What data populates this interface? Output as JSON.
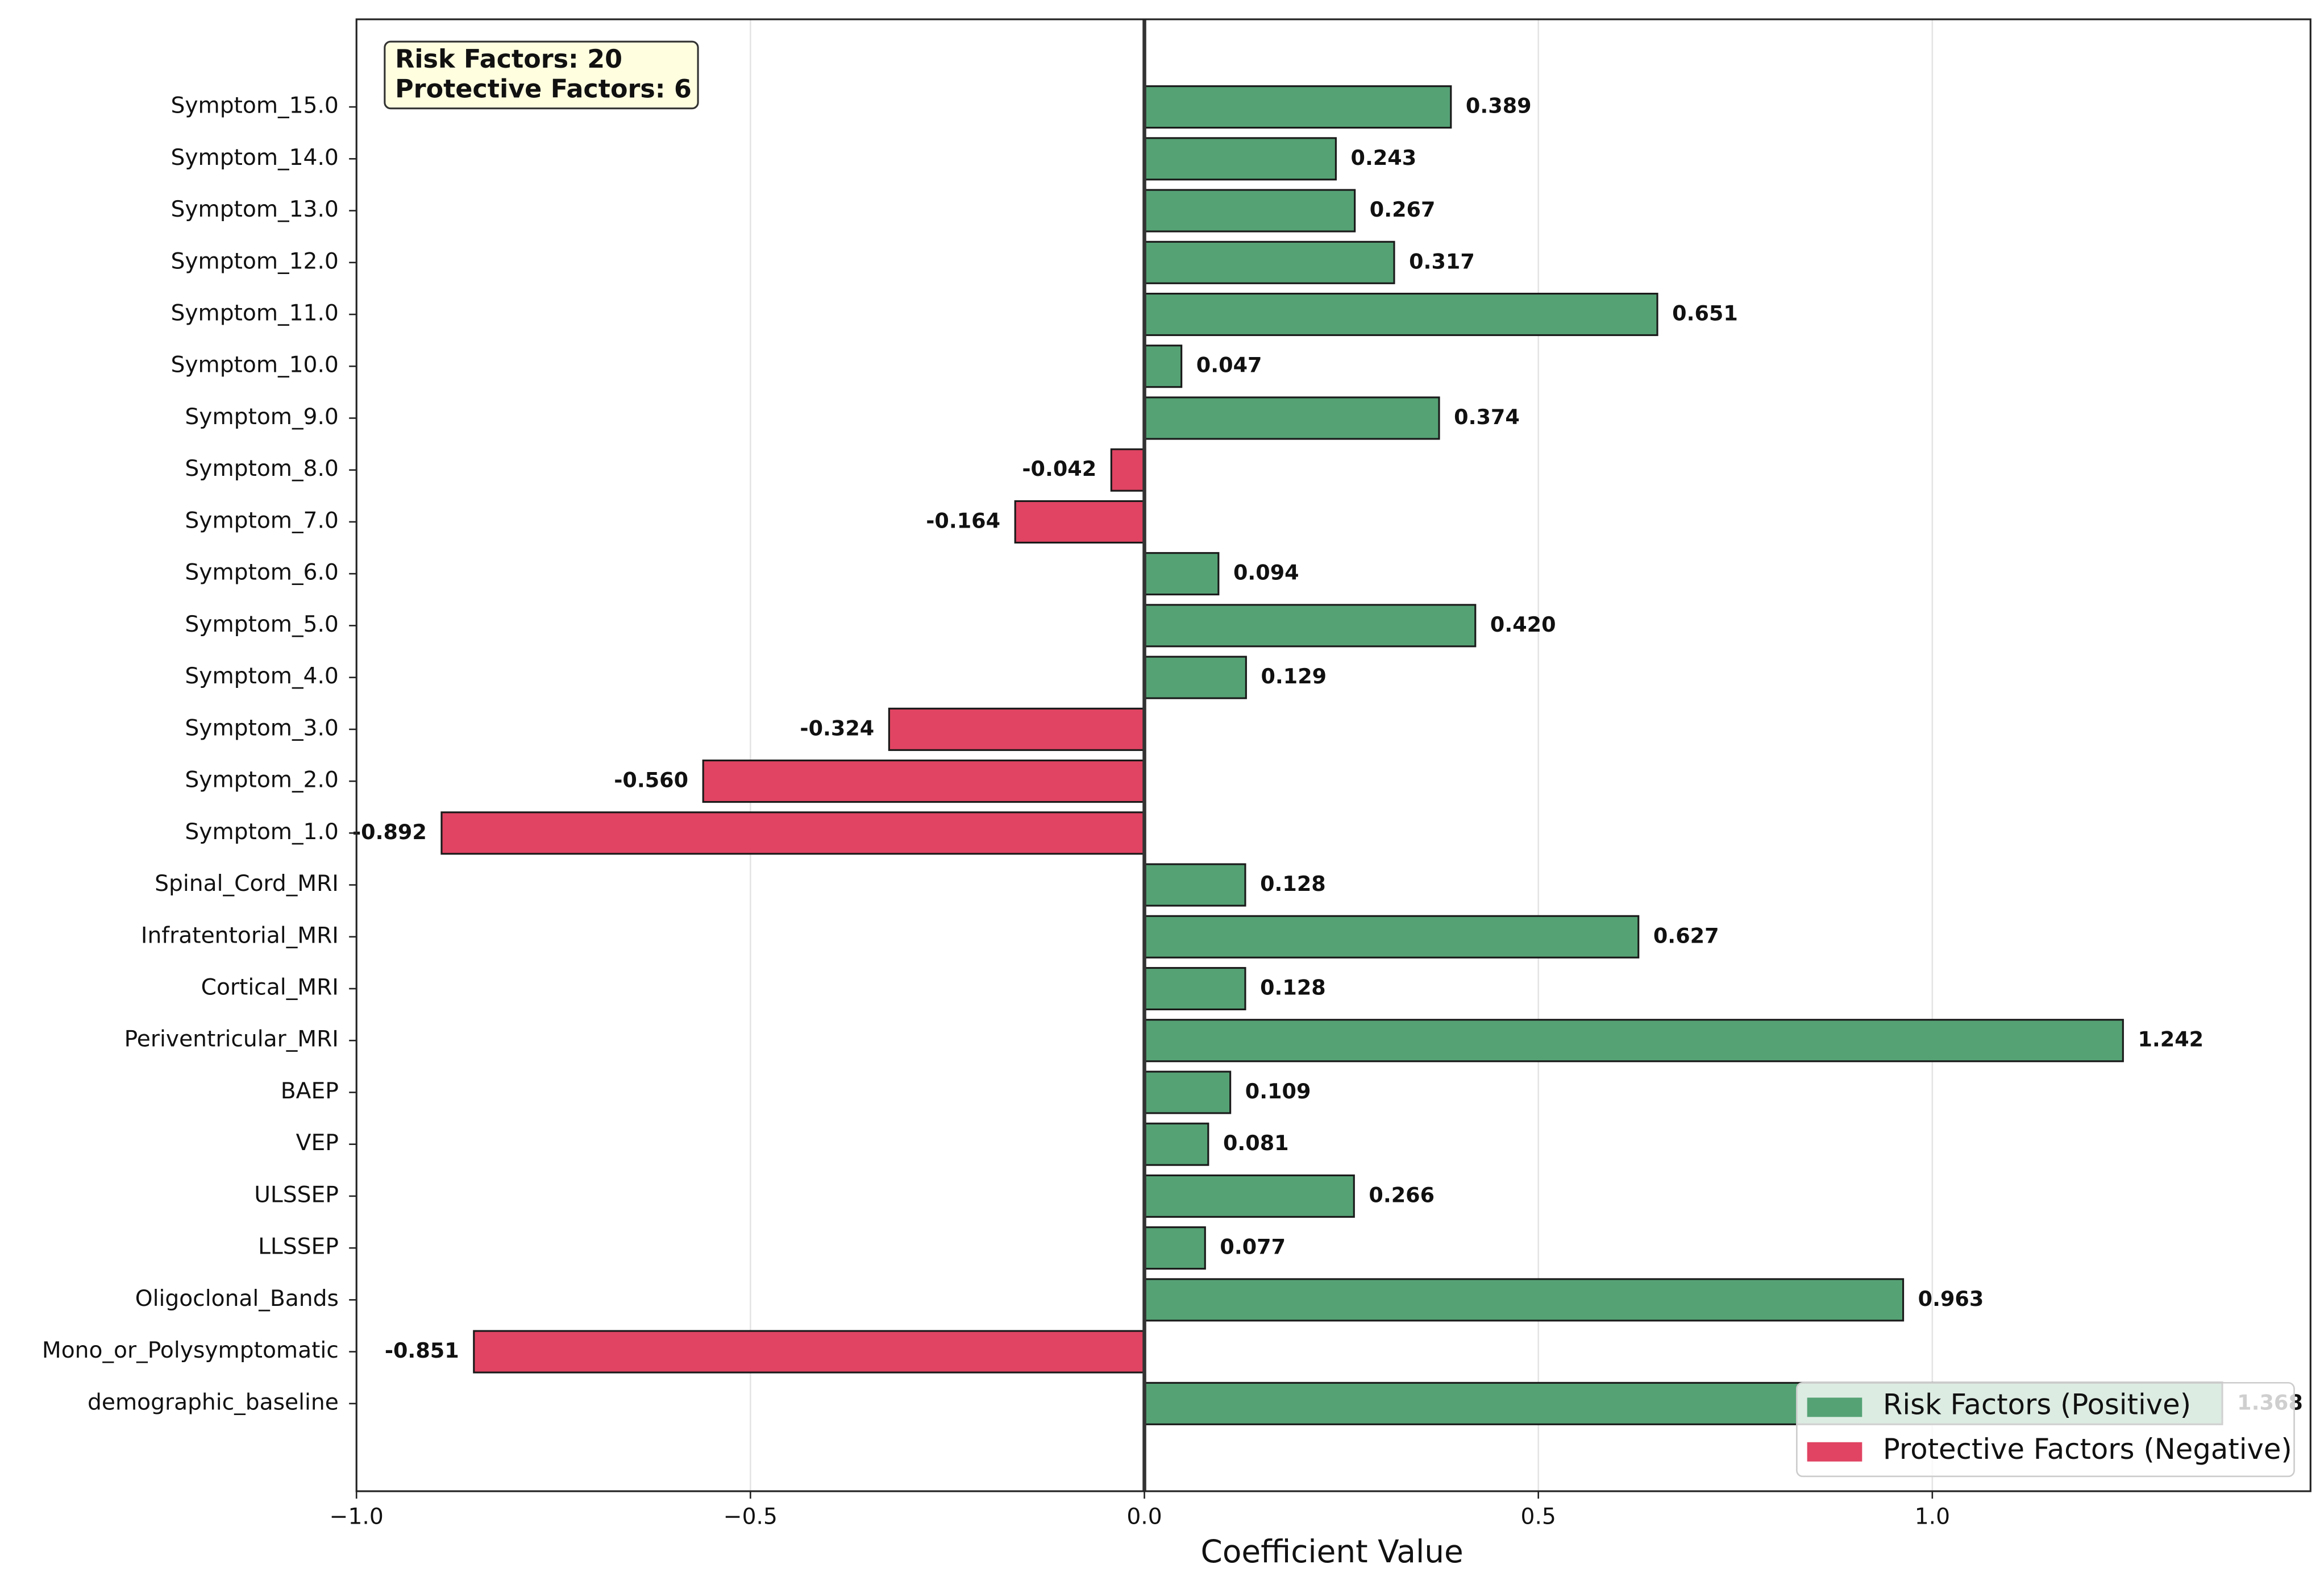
{
  "chart_data": {
    "type": "barh",
    "x_label": "Coefficient Value",
    "annotation": [
      "Risk Factors: 20",
      "Protective Factors: 6"
    ],
    "categories": [
      "Symptom_15.0",
      "Symptom_14.0",
      "Symptom_13.0",
      "Symptom_12.0",
      "Symptom_11.0",
      "Symptom_10.0",
      "Symptom_9.0",
      "Symptom_8.0",
      "Symptom_7.0",
      "Symptom_6.0",
      "Symptom_5.0",
      "Symptom_4.0",
      "Symptom_3.0",
      "Symptom_2.0",
      "Symptom_1.0",
      "Spinal_Cord_MRI",
      "Infratentorial_MRI",
      "Cortical_MRI",
      "Periventricular_MRI",
      "BAEP",
      "VEP",
      "ULSSEP",
      "LLSSEP",
      "Oligoclonal_Bands",
      "Mono_or_Polysymptomatic",
      "demographic_baseline"
    ],
    "series": [
      {
        "name": "Risk Factors (Positive)",
        "color": "#55a275",
        "values": [
          0.389,
          0.243,
          0.267,
          0.317,
          0.651,
          0.047,
          0.374,
          null,
          null,
          0.094,
          0.42,
          0.129,
          null,
          null,
          null,
          0.128,
          0.627,
          0.128,
          1.242,
          0.109,
          0.081,
          0.266,
          0.077,
          0.963,
          null,
          1.368
        ],
        "value_labels": [
          "0.389",
          "0.243",
          "0.267",
          "0.317",
          "0.651",
          "0.047",
          "0.374",
          null,
          null,
          "0.094",
          "0.420",
          "0.129",
          null,
          null,
          null,
          "0.128",
          "0.627",
          "0.128",
          "1.242",
          "0.109",
          "0.081",
          "0.266",
          "0.077",
          "0.963",
          null,
          "1.368"
        ]
      },
      {
        "name": "Protective Factors (Negative)",
        "color": "#e04462",
        "values": [
          null,
          null,
          null,
          null,
          null,
          null,
          null,
          -0.042,
          -0.164,
          null,
          null,
          null,
          -0.324,
          -0.56,
          -0.892,
          null,
          null,
          null,
          null,
          null,
          null,
          null,
          null,
          null,
          -0.851,
          null
        ],
        "value_labels": [
          null,
          null,
          null,
          null,
          null,
          null,
          null,
          "-0.042",
          "-0.164",
          null,
          null,
          null,
          "-0.324",
          "-0.560",
          "-0.892",
          null,
          null,
          null,
          null,
          null,
          null,
          null,
          null,
          null,
          "-0.851",
          null
        ]
      }
    ],
    "xlim": [
      -1.0,
      1.48
    ],
    "xticks": [
      {
        "value": -1.0,
        "label": "−1.0"
      },
      {
        "value": -0.5,
        "label": "−0.5"
      },
      {
        "value": 0,
        "label": "0.0"
      },
      {
        "value": 0.5,
        "label": "0.5"
      },
      {
        "value": 1,
        "label": "1.0"
      }
    ],
    "grid": true,
    "legend": "lower right"
  }
}
